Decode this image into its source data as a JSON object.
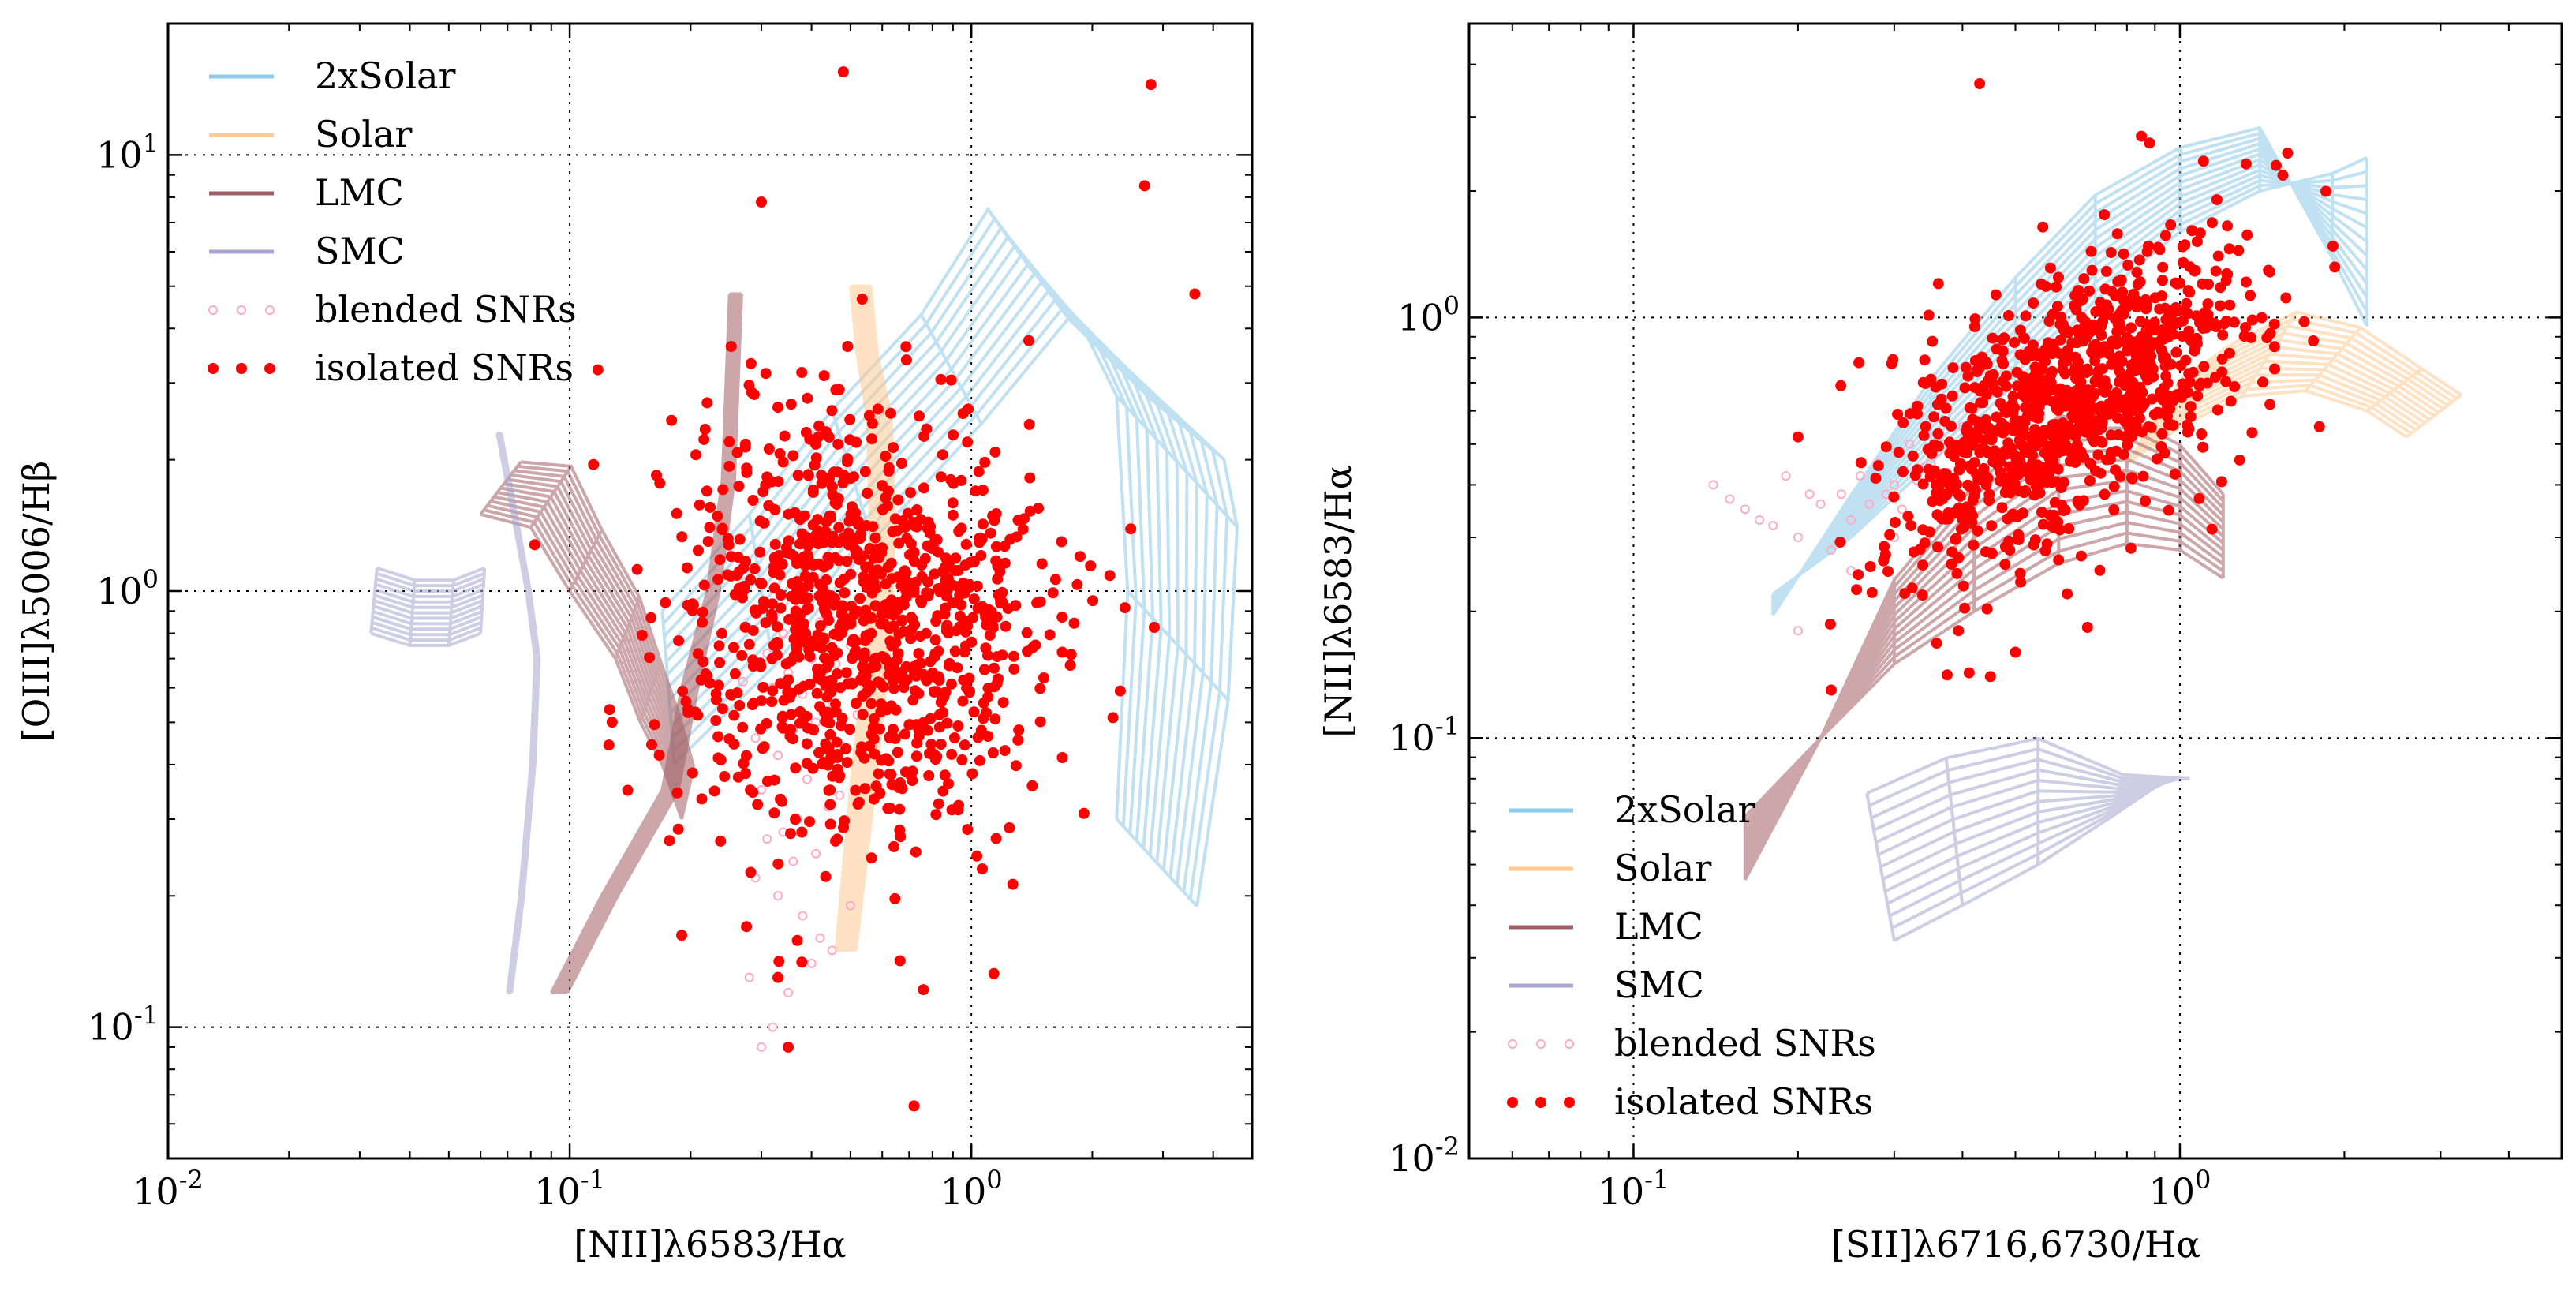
{
  "chart_data": [
    {
      "type": "scatter",
      "xscale": "log",
      "yscale": "log",
      "xlim": [
        0.01,
        5
      ],
      "ylim": [
        0.05,
        20
      ],
      "xlabel": "[NII]λ6583/Hα",
      "ylabel": "[OIII]λ5006/Hβ",
      "xticks": [
        {
          "v": 0.01,
          "m": "10",
          "e": "-2"
        },
        {
          "v": 0.1,
          "m": "10",
          "e": "-1"
        },
        {
          "v": 1,
          "m": "10",
          "e": "0"
        }
      ],
      "yticks": [
        {
          "v": 0.1,
          "m": "10",
          "e": "-1"
        },
        {
          "v": 1,
          "m": "10",
          "e": "0"
        },
        {
          "v": 10,
          "m": "10",
          "e": "1"
        }
      ],
      "grid": true,
      "legend_position": "upper-left",
      "legend": [
        "2xSolar",
        "Solar",
        "LMC",
        "SMC",
        "blended SNRs",
        "isolated SNRs"
      ],
      "grids": [
        {
          "name": "2xSolar",
          "color": "#8ecae6",
          "x": [
            0.17,
            0.28,
            0.45,
            0.75,
            1.1,
            1.4,
            1.9,
            2.3,
            2.45,
            2.3
          ],
          "y": [
            0.9,
            1.5,
            2.6,
            4.3,
            7.5,
            5.5,
            4.0,
            2.8,
            1.0,
            0.3
          ],
          "dx": [
            0.03,
            0.06,
            0.1,
            0.15,
            0.2,
            0.3,
            0.35,
            0.3,
            0.25,
            0.2
          ],
          "dy": [
            -0.35,
            -0.35,
            -0.3,
            -0.25,
            -0.25,
            -0.3,
            -0.3,
            -0.3,
            -0.25,
            -0.2
          ]
        },
        {
          "name": "Solar",
          "color": "#ffc994",
          "x": [
            0.46,
            0.5,
            0.55,
            0.56,
            0.55,
            0.52,
            0.5
          ],
          "y": [
            0.15,
            0.35,
            0.8,
            1.5,
            2.5,
            3.5,
            5.0
          ],
          "dx": [
            0.05,
            0.06,
            0.06,
            0.06,
            0.06,
            0.05,
            0.05
          ],
          "dy": [
            0.0,
            0.0,
            0.0,
            0.0,
            0.0,
            0.0,
            0.0
          ]
        },
        {
          "name": "LMC",
          "color": "#a35f63",
          "x": [
            0.09,
            0.12,
            0.17,
            0.19,
            0.22,
            0.24,
            0.25
          ],
          "y": [
            0.12,
            0.2,
            0.35,
            0.6,
            1.0,
            1.8,
            4.8
          ],
          "dx": [
            0.04,
            0.04,
            0.04,
            0.04,
            0.03,
            0.03,
            0.03
          ],
          "dy": [
            0.0,
            0.0,
            0.0,
            0.0,
            0.0,
            0.0,
            0.0
          ]
        },
        {
          "name": "LMC-net",
          "color": "#a35f63",
          "x": [
            0.06,
            0.08,
            0.1,
            0.13,
            0.15,
            0.17,
            0.19
          ],
          "y": [
            1.5,
            1.4,
            1.0,
            0.7,
            0.5,
            0.4,
            0.3
          ],
          "dx": [
            0.1,
            0.1,
            0.08,
            0.06,
            0.05,
            0.04,
            0.03
          ],
          "dy": [
            0.12,
            0.14,
            0.14,
            0.14,
            0.14,
            0.12,
            0.12
          ]
        },
        {
          "name": "SMC",
          "color": "#a9a5ce",
          "x": [
            0.07,
            0.075,
            0.08,
            0.082,
            0.078,
            0.072,
            0.066
          ],
          "y": [
            0.12,
            0.2,
            0.4,
            0.7,
            1.0,
            1.5,
            2.3
          ],
          "dx": [
            0.01,
            0.01,
            0.01,
            0.01,
            0.01,
            0.01,
            0.01
          ],
          "dy": [
            0.0,
            0.0,
            0.0,
            0.0,
            0.0,
            0.0,
            0.0
          ]
        },
        {
          "name": "SMC-net",
          "color": "#a9a5ce",
          "x": [
            0.032,
            0.04,
            0.05,
            0.06
          ],
          "y": [
            0.8,
            0.75,
            0.75,
            0.8
          ],
          "dx": [
            0.015,
            0.012,
            0.012,
            0.01
          ],
          "dy": [
            0.15,
            0.15,
            0.15,
            0.15
          ]
        }
      ],
      "blended": {
        "color": "#ffaac8",
        "x": [
          0.3,
          0.32,
          0.35,
          0.28,
          0.4,
          0.45,
          0.42,
          0.38,
          0.5,
          0.33,
          0.29,
          0.36,
          0.41,
          0.31,
          0.34,
          0.37,
          0.44,
          0.47,
          0.3,
          0.39,
          0.43,
          0.33,
          0.48,
          0.29,
          0.36,
          0.41,
          0.52,
          0.45,
          0.38,
          0.32,
          0.27,
          0.35,
          0.46,
          0.4,
          0.31,
          0.5,
          0.55,
          0.34,
          0.42
        ],
        "y": [
          0.09,
          0.1,
          0.12,
          0.13,
          0.14,
          0.15,
          0.16,
          0.18,
          0.19,
          0.2,
          0.22,
          0.24,
          0.25,
          0.27,
          0.28,
          0.3,
          0.32,
          0.34,
          0.35,
          0.37,
          0.4,
          0.42,
          0.44,
          0.46,
          0.48,
          0.5,
          0.52,
          0.55,
          0.58,
          0.6,
          0.62,
          0.65,
          0.68,
          0.7,
          0.72,
          0.75,
          0.78,
          0.8,
          0.85
        ]
      },
      "isolated": {
        "color": "#ff0000",
        "n": 1000,
        "center": [
          0.52,
          0.85
        ],
        "spread": [
          0.42,
          0.42
        ],
        "extra_x": [
          0.48,
          2.8,
          2.7,
          3.6,
          0.3,
          0.72,
          0.35,
          0.33
        ],
        "extra_y": [
          15.5,
          14.5,
          8.5,
          4.8,
          7.8,
          0.066,
          0.09,
          0.13
        ]
      }
    },
    {
      "type": "scatter",
      "xscale": "log",
      "yscale": "log",
      "xlim": [
        0.05,
        5
      ],
      "ylim": [
        0.01,
        5
      ],
      "xlabel": "[SII]λ6716,6730/Hα",
      "ylabel": "[NII]λ6583/Hα",
      "xticks": [
        {
          "v": 0.1,
          "m": "10",
          "e": "-1"
        },
        {
          "v": 1,
          "m": "10",
          "e": "0"
        }
      ],
      "yticks": [
        {
          "v": 0.01,
          "m": "10",
          "e": "-2"
        },
        {
          "v": 0.1,
          "m": "10",
          "e": "-1"
        },
        {
          "v": 1,
          "m": "10",
          "e": "0"
        }
      ],
      "grid": true,
      "legend_position": "lower-left",
      "legend": [
        "2xSolar",
        "Solar",
        "LMC",
        "SMC",
        "blended SNRs",
        "isolated SNRs"
      ],
      "grids": [
        {
          "name": "2xSolar",
          "color": "#8ecae6",
          "x": [
            0.18,
            0.25,
            0.35,
            0.5,
            0.7,
            1.0,
            1.4,
            1.9,
            2.2
          ],
          "y": [
            0.22,
            0.3,
            0.45,
            0.7,
            1.1,
            1.6,
            2.0,
            2.2,
            2.4
          ],
          "dx": [
            0.0,
            0.0,
            0.0,
            0.0,
            0.0,
            0.0,
            0.0,
            0.0,
            0.0
          ],
          "dy": [
            -0.05,
            0.1,
            0.2,
            0.25,
            0.25,
            0.2,
            0.15,
            -0.2,
            -0.4
          ]
        },
        {
          "name": "Solar",
          "color": "#ffc994",
          "x": [
            0.8,
            1.0,
            1.3,
            1.7,
            2.2,
            2.6
          ],
          "y": [
            0.45,
            0.55,
            0.65,
            0.67,
            0.6,
            0.52
          ],
          "dx": [
            0.1,
            0.1,
            0.1,
            0.1,
            0.1,
            0.1
          ],
          "dy": [
            0.2,
            0.2,
            0.2,
            0.15,
            0.1,
            0.1
          ]
        },
        {
          "name": "LMC",
          "color": "#a35f63",
          "x": [
            0.16,
            0.22,
            0.3,
            0.42,
            0.6,
            0.8,
            1.0,
            1.2
          ],
          "y": [
            0.065,
            0.1,
            0.15,
            0.2,
            0.26,
            0.29,
            0.28,
            0.24
          ],
          "dx": [
            0.0,
            0.0,
            0.0,
            0.0,
            0.0,
            0.0,
            0.0,
            0.0
          ],
          "dy": [
            -0.15,
            0.0,
            0.2,
            0.3,
            0.35,
            0.3,
            0.25,
            0.2
          ]
        },
        {
          "name": "SMC",
          "color": "#a9a5ce",
          "x": [
            0.3,
            0.4,
            0.55,
            0.75,
            0.95
          ],
          "y": [
            0.033,
            0.04,
            0.05,
            0.065,
            0.08
          ],
          "dx": [
            -0.05,
            -0.03,
            0.0,
            0.02,
            0.04
          ],
          "dy": [
            0.35,
            0.35,
            0.3,
            0.1,
            0.0
          ]
        }
      ],
      "blended": {
        "color": "#ffaac8",
        "x": [
          0.14,
          0.16,
          0.18,
          0.2,
          0.22,
          0.24,
          0.26,
          0.28,
          0.3,
          0.32,
          0.34,
          0.36,
          0.17,
          0.19,
          0.21,
          0.23,
          0.25,
          0.27,
          0.29,
          0.31,
          0.33,
          0.35,
          0.15,
          0.2,
          0.25,
          0.3,
          0.37,
          0.4
        ],
        "y": [
          0.4,
          0.35,
          0.32,
          0.3,
          0.36,
          0.38,
          0.42,
          0.45,
          0.4,
          0.5,
          0.44,
          0.48,
          0.33,
          0.42,
          0.38,
          0.28,
          0.33,
          0.36,
          0.38,
          0.35,
          0.41,
          0.45,
          0.37,
          0.18,
          0.25,
          0.3,
          0.5,
          0.55
        ]
      },
      "isolated": {
        "color": "#ff0000",
        "n": 1000,
        "center": [
          0.62,
          0.62
        ],
        "spread": [
          0.3,
          0.45
        ],
        "extra_x": [
          0.43,
          0.85,
          0.88,
          0.2,
          0.23,
          0.45,
          0.5,
          1.5,
          1.8
        ],
        "extra_y": [
          3.6,
          2.7,
          2.6,
          0.52,
          0.13,
          0.14,
          0.16,
          2.3,
          0.55
        ]
      }
    }
  ]
}
